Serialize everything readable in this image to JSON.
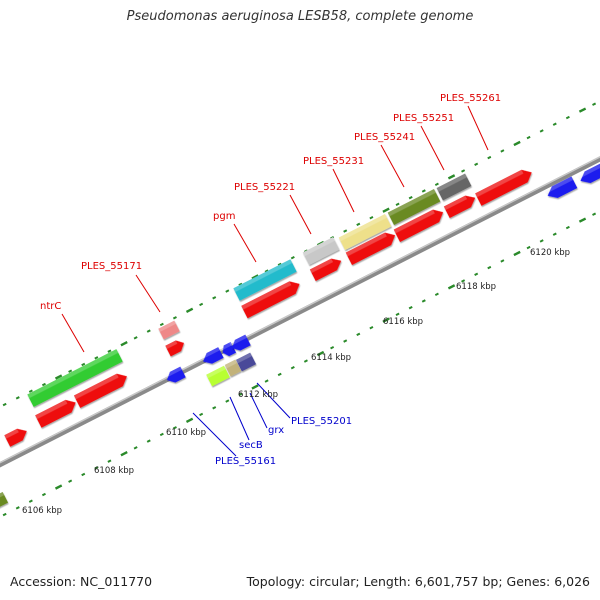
{
  "title": "Pseudomonas aeruginosa LESB58, complete genome",
  "footer": {
    "accession": "Accession: NC_011770",
    "summary": "Topology: circular; Length: 6,601,757 bp; Genes: 6,026"
  },
  "colors": {
    "label_red": "#dd0000",
    "label_blue": "#0000cc",
    "backbone": "#8a8a8a",
    "tick": "#2a8a2a"
  },
  "axis_labels": [
    "6106 kbp",
    "6108 kbp",
    "6110 kbp",
    "6112 kbp",
    "6114 kbp",
    "6116 kbp",
    "6118 kbp",
    "6120 kbp"
  ],
  "upper_labels": [
    "ntrC",
    "PLES_55171",
    "pgm",
    "PLES_55221",
    "PLES_55231",
    "PLES_55241",
    "PLES_55251",
    "PLES_55261"
  ],
  "lower_labels": [
    "PLES_55161",
    "secB",
    "grx",
    "PLES_55201"
  ]
}
